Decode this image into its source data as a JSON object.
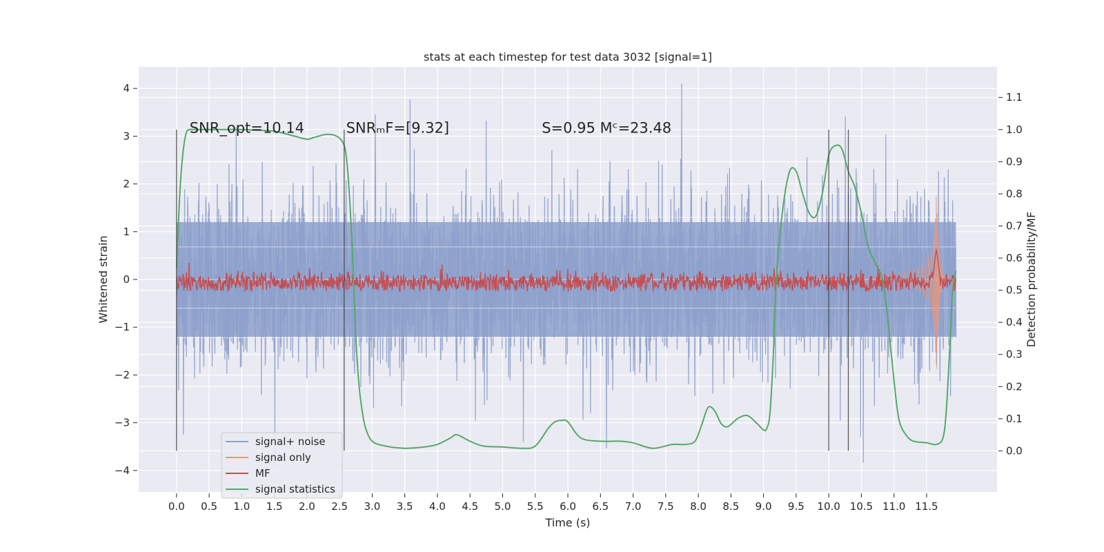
{
  "chart_data": {
    "type": "line",
    "title": "stats at each timestep for test data 3032 [signal=1]",
    "xlabel": "Time (s)",
    "ylabel": "Whitened strain",
    "y2label": "Detection probability/MF",
    "xlim": [
      -0.58,
      12.58
    ],
    "ylim": [
      -4.45,
      4.45
    ],
    "y2lim": [
      -0.128,
      1.195
    ],
    "x_ticks": [
      0.0,
      0.5,
      1.0,
      1.5,
      2.0,
      2.5,
      3.0,
      3.5,
      4.0,
      4.5,
      5.0,
      5.5,
      6.0,
      6.5,
      7.0,
      7.5,
      8.0,
      8.5,
      9.0,
      9.5,
      10.0,
      10.5,
      11.0,
      11.5
    ],
    "x_tick_labels": [
      "0.0",
      "0.5",
      "1.0",
      "1.5",
      "2.0",
      "2.5",
      "3.0",
      "3.5",
      "4.0",
      "4.5",
      "5.0",
      "5.5",
      "6.0",
      "6.5",
      "7.0",
      "7.5",
      "8.0",
      "8.5",
      "9.0",
      "9.5",
      "10.0",
      "10.5",
      "11.0",
      "11.5"
    ],
    "y_ticks": [
      4,
      3,
      2,
      1,
      0,
      -1,
      -2,
      -3,
      -4
    ],
    "y_tick_labels": [
      "4",
      "3",
      "2",
      "1",
      "0",
      "−1",
      "−2",
      "−3",
      "−4"
    ],
    "y2_ticks": [
      1.1,
      1.0,
      0.9,
      0.8,
      0.7,
      0.6,
      0.5,
      0.4,
      0.3,
      0.2,
      0.1,
      0.0
    ],
    "y2_tick_labels": [
      "1.1",
      "1.0",
      "0.9",
      "0.8",
      "0.7",
      "0.6",
      "0.5",
      "0.4",
      "0.3",
      "0.2",
      "0.1",
      "0.0"
    ],
    "grid": true,
    "legend_position": "bottom-left",
    "annotations": [
      {
        "text": "SNR_opt=10.14",
        "x": 0.2,
        "y2": 0.99
      },
      {
        "text": "SNRₘF=[9.32]",
        "x": 2.6,
        "y2": 0.99
      },
      {
        "text": "S=0.95   Mᶜ=23.48",
        "x": 5.6,
        "y2": 0.99
      }
    ],
    "vertical_lines_x": [
      0.0,
      2.57,
      10.0,
      10.3
    ],
    "vertical_lines_y2_range": [
      0.0,
      1.0
    ],
    "series": [
      {
        "name": "signal+ noise",
        "color": "#8da0cb",
        "axis": "left",
        "noise_envelope": {
          "x_start": 0.0,
          "x_end": 11.95,
          "dense_band": [
            -1.2,
            1.2
          ],
          "typical_extremes": [
            -2.8,
            2.8
          ],
          "max": 4.1,
          "min": -3.95
        }
      },
      {
        "name": "signal only",
        "color": "#e8967a",
        "axis": "left",
        "chirp": {
          "x_start": 8.7,
          "merger_x": 11.65,
          "peak_amplitude": 2.2,
          "end_x": 11.95
        }
      },
      {
        "name": "MF",
        "color": "#c44e52",
        "axis": "right",
        "baseline": 0.52,
        "noise_range": [
          0.49,
          0.57
        ],
        "peak": {
          "x": 11.65,
          "value": 0.63
        }
      },
      {
        "name": "signal statistics",
        "color": "#55a868",
        "axis": "right",
        "x": [
          0.0,
          0.05,
          0.1,
          0.15,
          0.2,
          0.3,
          0.5,
          0.8,
          1.0,
          1.2,
          1.5,
          1.8,
          2.0,
          2.1,
          2.3,
          2.45,
          2.55,
          2.6,
          2.65,
          2.7,
          2.75,
          2.8,
          2.85,
          2.9,
          3.0,
          3.2,
          3.5,
          3.8,
          4.0,
          4.2,
          4.3,
          4.5,
          4.7,
          5.0,
          5.3,
          5.5,
          5.7,
          5.8,
          5.9,
          6.0,
          6.2,
          6.5,
          6.8,
          7.0,
          7.3,
          7.6,
          7.8,
          7.95,
          8.05,
          8.15,
          8.25,
          8.35,
          8.45,
          8.6,
          8.75,
          8.9,
          9.0,
          9.05,
          9.1,
          9.15,
          9.2,
          9.3,
          9.4,
          9.5,
          9.6,
          9.7,
          9.8,
          9.9,
          10.0,
          10.1,
          10.2,
          10.3,
          10.4,
          10.5,
          10.6,
          10.7,
          10.8,
          10.85,
          10.9,
          10.95,
          11.0,
          11.05,
          11.1,
          11.2,
          11.3,
          11.5,
          11.65,
          11.75,
          11.8,
          11.85,
          11.9,
          11.95
        ],
        "values": [
          0.57,
          0.8,
          0.93,
          0.99,
          1.0,
          1.0,
          1.0,
          1.0,
          1.0,
          0.998,
          0.995,
          0.98,
          0.97,
          0.975,
          0.985,
          0.98,
          0.96,
          0.92,
          0.8,
          0.6,
          0.35,
          0.2,
          0.12,
          0.07,
          0.03,
          0.015,
          0.008,
          0.012,
          0.02,
          0.04,
          0.05,
          0.03,
          0.015,
          0.012,
          0.008,
          0.015,
          0.07,
          0.09,
          0.095,
          0.09,
          0.04,
          0.03,
          0.03,
          0.025,
          0.008,
          0.02,
          0.02,
          0.03,
          0.08,
          0.135,
          0.125,
          0.085,
          0.075,
          0.1,
          0.11,
          0.085,
          0.065,
          0.07,
          0.12,
          0.3,
          0.55,
          0.76,
          0.87,
          0.87,
          0.8,
          0.74,
          0.73,
          0.8,
          0.92,
          0.95,
          0.94,
          0.87,
          0.82,
          0.74,
          0.64,
          0.59,
          0.55,
          0.5,
          0.42,
          0.32,
          0.22,
          0.13,
          0.08,
          0.045,
          0.03,
          0.025,
          0.02,
          0.04,
          0.12,
          0.3,
          0.5,
          0.56
        ]
      }
    ]
  }
}
